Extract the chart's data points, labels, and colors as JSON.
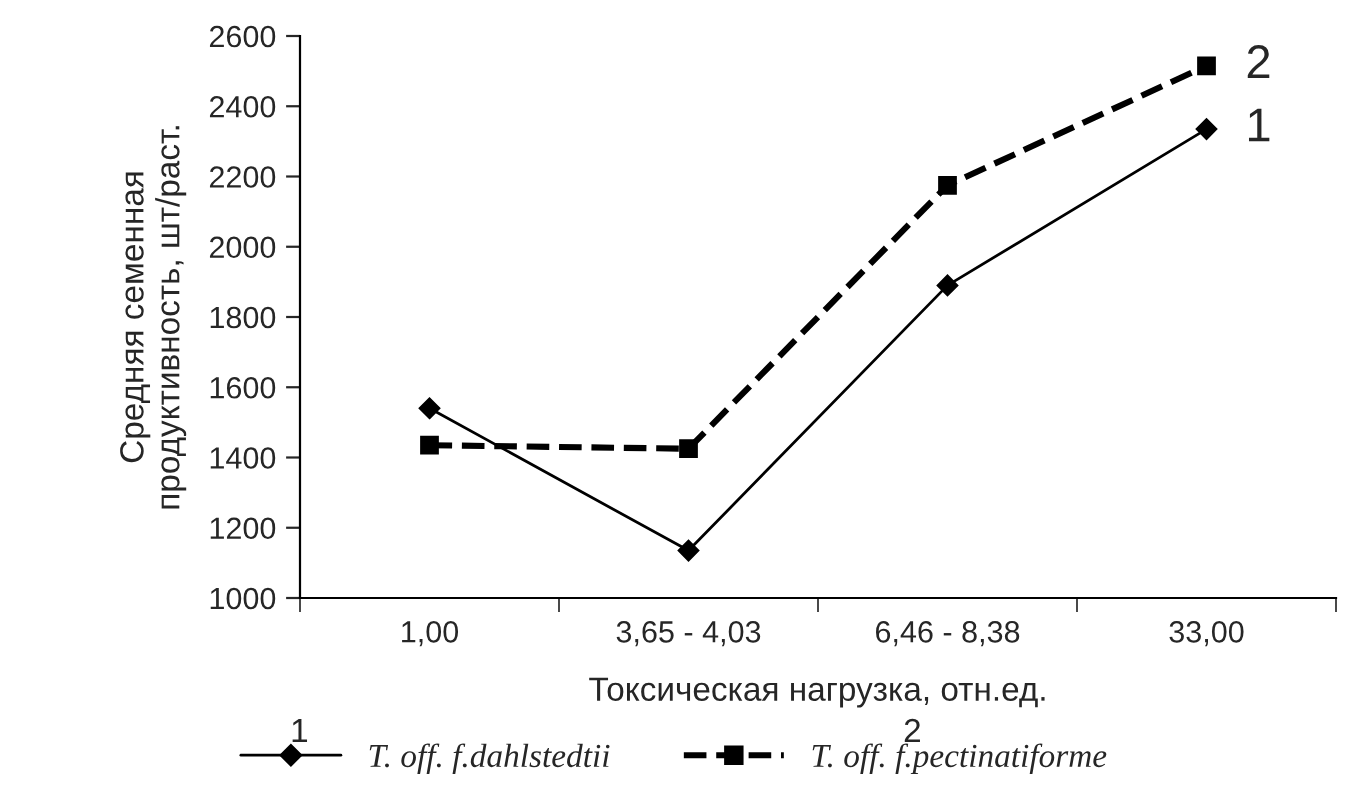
{
  "chart_data": {
    "type": "line",
    "xlabel": "Токсическая нагрузка, отн.ед.",
    "ylabel": "Средняя семенная\nпродуктивность, шт/раст.",
    "categories": [
      "1,00",
      "3,65 - 4,03",
      "6,46 - 8,38",
      "33,00"
    ],
    "series": [
      {
        "name": "T. off. f.dahlstedtii",
        "color": "#000000",
        "values": [
          1540,
          1135,
          1890,
          2335
        ],
        "marker": "diamond",
        "line_style": "solid"
      },
      {
        "name": "T. off. f.pectinatiforme",
        "color": "#000000",
        "values": [
          1435,
          1425,
          2175,
          2515
        ],
        "marker": "square",
        "line_style": "dashed"
      }
    ],
    "ylim": [
      1000,
      2600
    ],
    "yticks": [
      1000,
      1200,
      1400,
      1600,
      1800,
      2000,
      2200,
      2400,
      2600
    ],
    "grid": false,
    "legend": "bottom",
    "annotations": [
      {
        "text": "1",
        "x": "33,00",
        "y": 2335
      },
      {
        "text": "2",
        "x": "33,00",
        "y": 2515
      }
    ]
  }
}
